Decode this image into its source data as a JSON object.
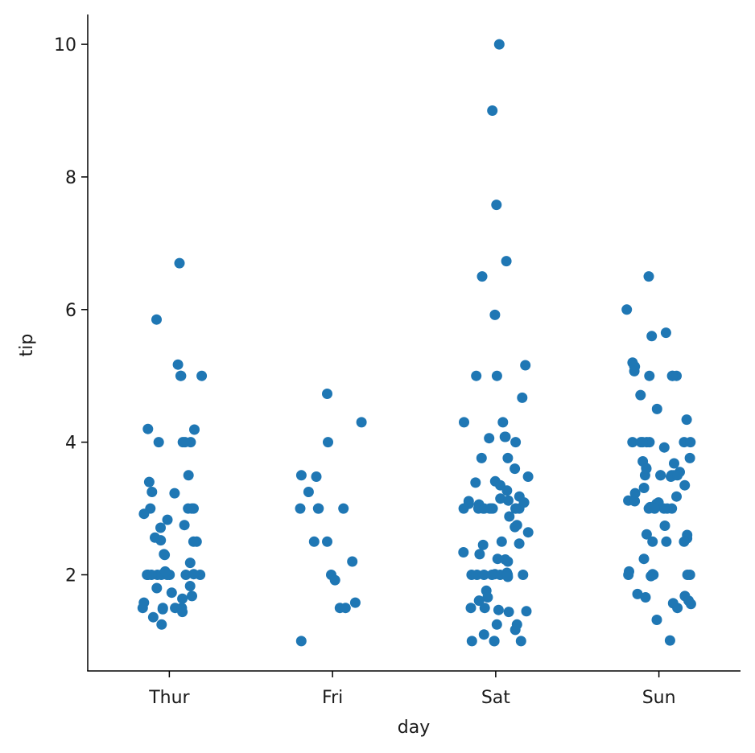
{
  "chart_data": {
    "type": "scatter",
    "subtype": "strip",
    "xlabel": "day",
    "ylabel": "tip",
    "categories": [
      "Thur",
      "Fri",
      "Sat",
      "Sun"
    ],
    "ylim": [
      0.55,
      10.45
    ],
    "yticks": [
      2,
      4,
      6,
      8,
      10
    ],
    "grid": false,
    "legend": "none",
    "point_color": "#1f77b4",
    "series": [
      {
        "category": "Thur",
        "values": [
          6.7,
          5.85,
          5.17,
          5.0,
          5.0,
          5.0,
          4.2,
          4.19,
          4.0,
          4.0,
          4.0,
          4.0,
          3.5,
          3.4,
          3.23,
          3.25,
          3.0,
          3.0,
          3.0,
          3.0,
          2.92,
          2.83,
          2.75,
          2.71,
          2.56,
          2.52,
          2.5,
          2.5,
          2.31,
          2.3,
          2.18,
          2.0,
          2.0,
          2.0,
          2.0,
          2.0,
          2.0,
          2.0,
          2.0,
          2.0,
          2.05,
          2.01,
          1.83,
          1.8,
          1.73,
          1.68,
          1.64,
          1.58,
          1.5,
          1.5,
          1.5,
          1.48,
          1.44,
          1.36,
          1.25,
          1.5
        ]
      },
      {
        "category": "Fri",
        "values": [
          4.73,
          4.3,
          4.0,
          3.5,
          3.48,
          3.25,
          3.0,
          3.0,
          3.0,
          3.0,
          2.5,
          2.5,
          2.2,
          2.0,
          1.92,
          1.58,
          1.5,
          1.5,
          1.0
        ]
      },
      {
        "category": "Sat",
        "values": [
          10.0,
          9.0,
          7.58,
          6.73,
          6.5,
          5.92,
          5.16,
          5.0,
          5.0,
          4.67,
          4.3,
          4.3,
          4.08,
          4.08,
          4.06,
          4.0,
          3.76,
          3.76,
          3.6,
          3.48,
          3.41,
          3.39,
          3.35,
          3.27,
          3.18,
          3.15,
          3.12,
          3.11,
          3.09,
          3.07,
          3.06,
          3.0,
          3.0,
          3.0,
          3.0,
          3.0,
          3.0,
          3.0,
          3.0,
          3.0,
          3.0,
          2.88,
          2.75,
          2.72,
          2.64,
          2.5,
          2.47,
          2.45,
          2.34,
          2.31,
          2.24,
          2.23,
          2.2,
          2.03,
          2.01,
          2.0,
          2.0,
          2.0,
          2.0,
          2.0,
          2.0,
          2.0,
          2.0,
          2.0,
          1.97,
          1.76,
          1.66,
          1.61,
          1.5,
          1.5,
          1.47,
          1.45,
          1.44,
          1.25,
          1.25,
          1.17,
          1.1,
          1.0,
          1.0,
          1.0,
          1.0
        ]
      },
      {
        "category": "Sun",
        "values": [
          6.5,
          6.0,
          5.65,
          5.6,
          5.2,
          5.14,
          5.15,
          5.07,
          5.0,
          5.0,
          5.0,
          5.0,
          4.71,
          4.5,
          4.34,
          4.0,
          4.0,
          4.0,
          4.0,
          4.0,
          4.0,
          4.0,
          3.92,
          3.76,
          3.71,
          3.68,
          3.61,
          3.55,
          3.5,
          3.5,
          3.5,
          3.5,
          3.5,
          3.48,
          3.31,
          3.23,
          3.18,
          3.12,
          3.11,
          3.09,
          3.07,
          3.02,
          3.0,
          3.0,
          3.0,
          3.0,
          3.0,
          3.0,
          2.74,
          2.61,
          2.6,
          2.55,
          2.5,
          2.5,
          2.5,
          2.24,
          2.05,
          2.01,
          2.0,
          2.0,
          2.0,
          2.0,
          2.0,
          1.98,
          1.71,
          1.68,
          1.66,
          1.61,
          1.57,
          1.56,
          1.5,
          1.32,
          1.01,
          3.35,
          3.6,
          3.5
        ]
      }
    ]
  }
}
